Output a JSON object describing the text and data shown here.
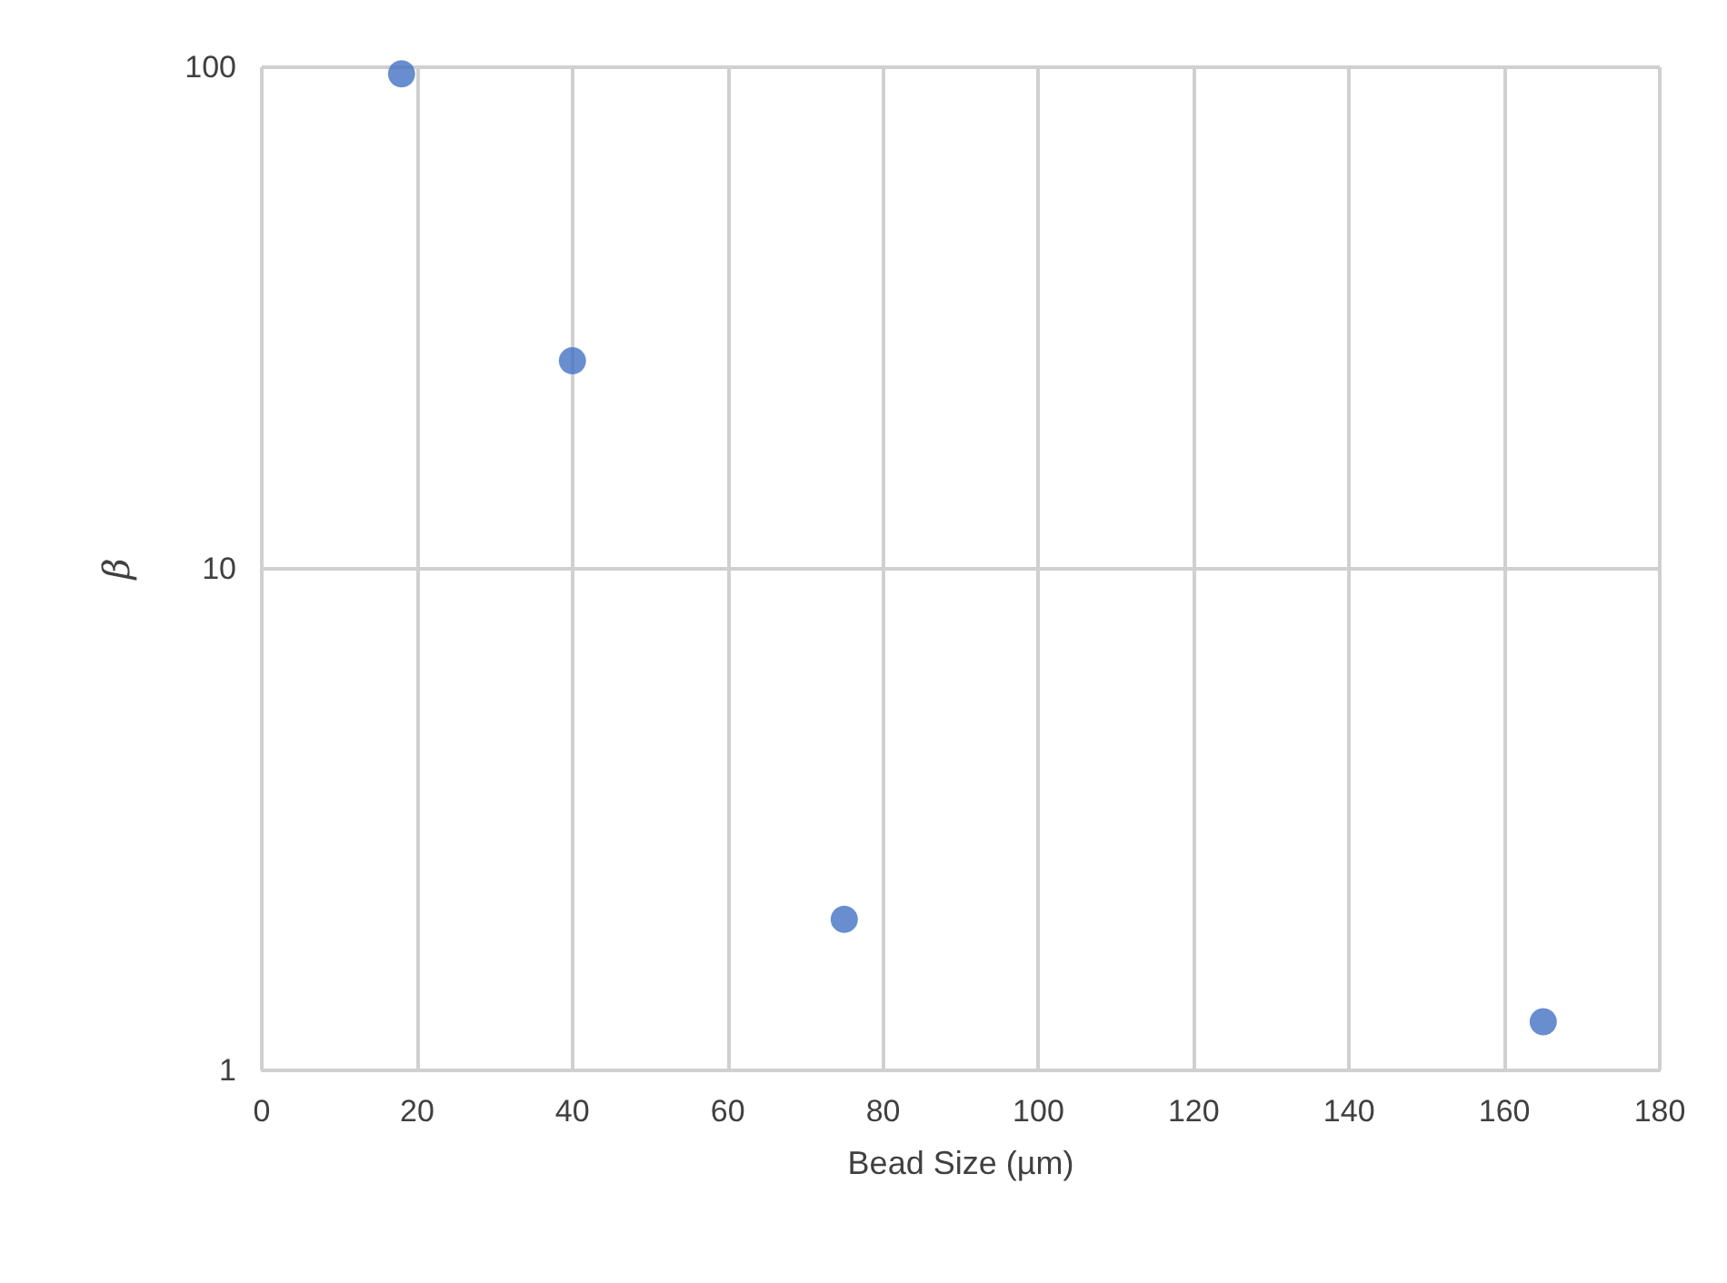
{
  "chart_data": {
    "type": "scatter",
    "xlabel": "Bead Size (µm)",
    "ylabel": "β",
    "x": [
      18,
      40,
      75,
      165
    ],
    "series": [
      {
        "color": "#4472c4",
        "values": [
          97,
          26,
          2,
          1.25
        ]
      }
    ],
    "xlim": [
      0,
      180
    ],
    "xticks": [
      0,
      20,
      40,
      60,
      80,
      100,
      120,
      140,
      160,
      180
    ],
    "ylim": [
      1,
      100
    ],
    "yticks": [
      1,
      10,
      100
    ],
    "log": "y",
    "grid": true,
    "marker": "circle"
  }
}
